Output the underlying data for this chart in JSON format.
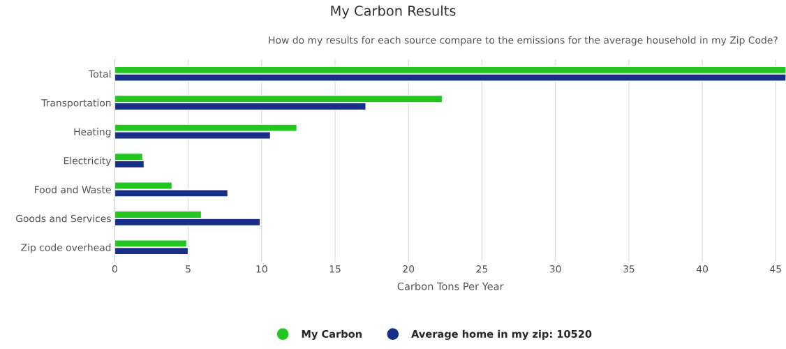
{
  "chart_data": {
    "type": "bar",
    "orientation": "horizontal",
    "title": "My Carbon Results",
    "subtitle": "How do my results for each source compare to the emissions for the average household in my Zip Code?",
    "xlabel": "Carbon Tons Per Year",
    "categories": [
      "Total",
      "Transportation",
      "Heating",
      "Electricity",
      "Food and Waste",
      "Goods and Services",
      "Zip code overhead"
    ],
    "series": [
      {
        "name": "My Carbon",
        "color": "#22c61e",
        "values": [
          45.7,
          22.3,
          12.4,
          1.9,
          3.9,
          5.9,
          4.9
        ]
      },
      {
        "name": "Average home in my zip: 10520",
        "color": "#172f86",
        "values": [
          45.7,
          17.1,
          10.6,
          2.0,
          7.7,
          9.9,
          5.0
        ]
      }
    ],
    "xlim": [
      0,
      45.7
    ],
    "xticks": [
      0,
      5,
      10,
      15,
      20,
      25,
      30,
      35,
      40,
      45
    ],
    "grid": "x",
    "legend": "bottom"
  }
}
